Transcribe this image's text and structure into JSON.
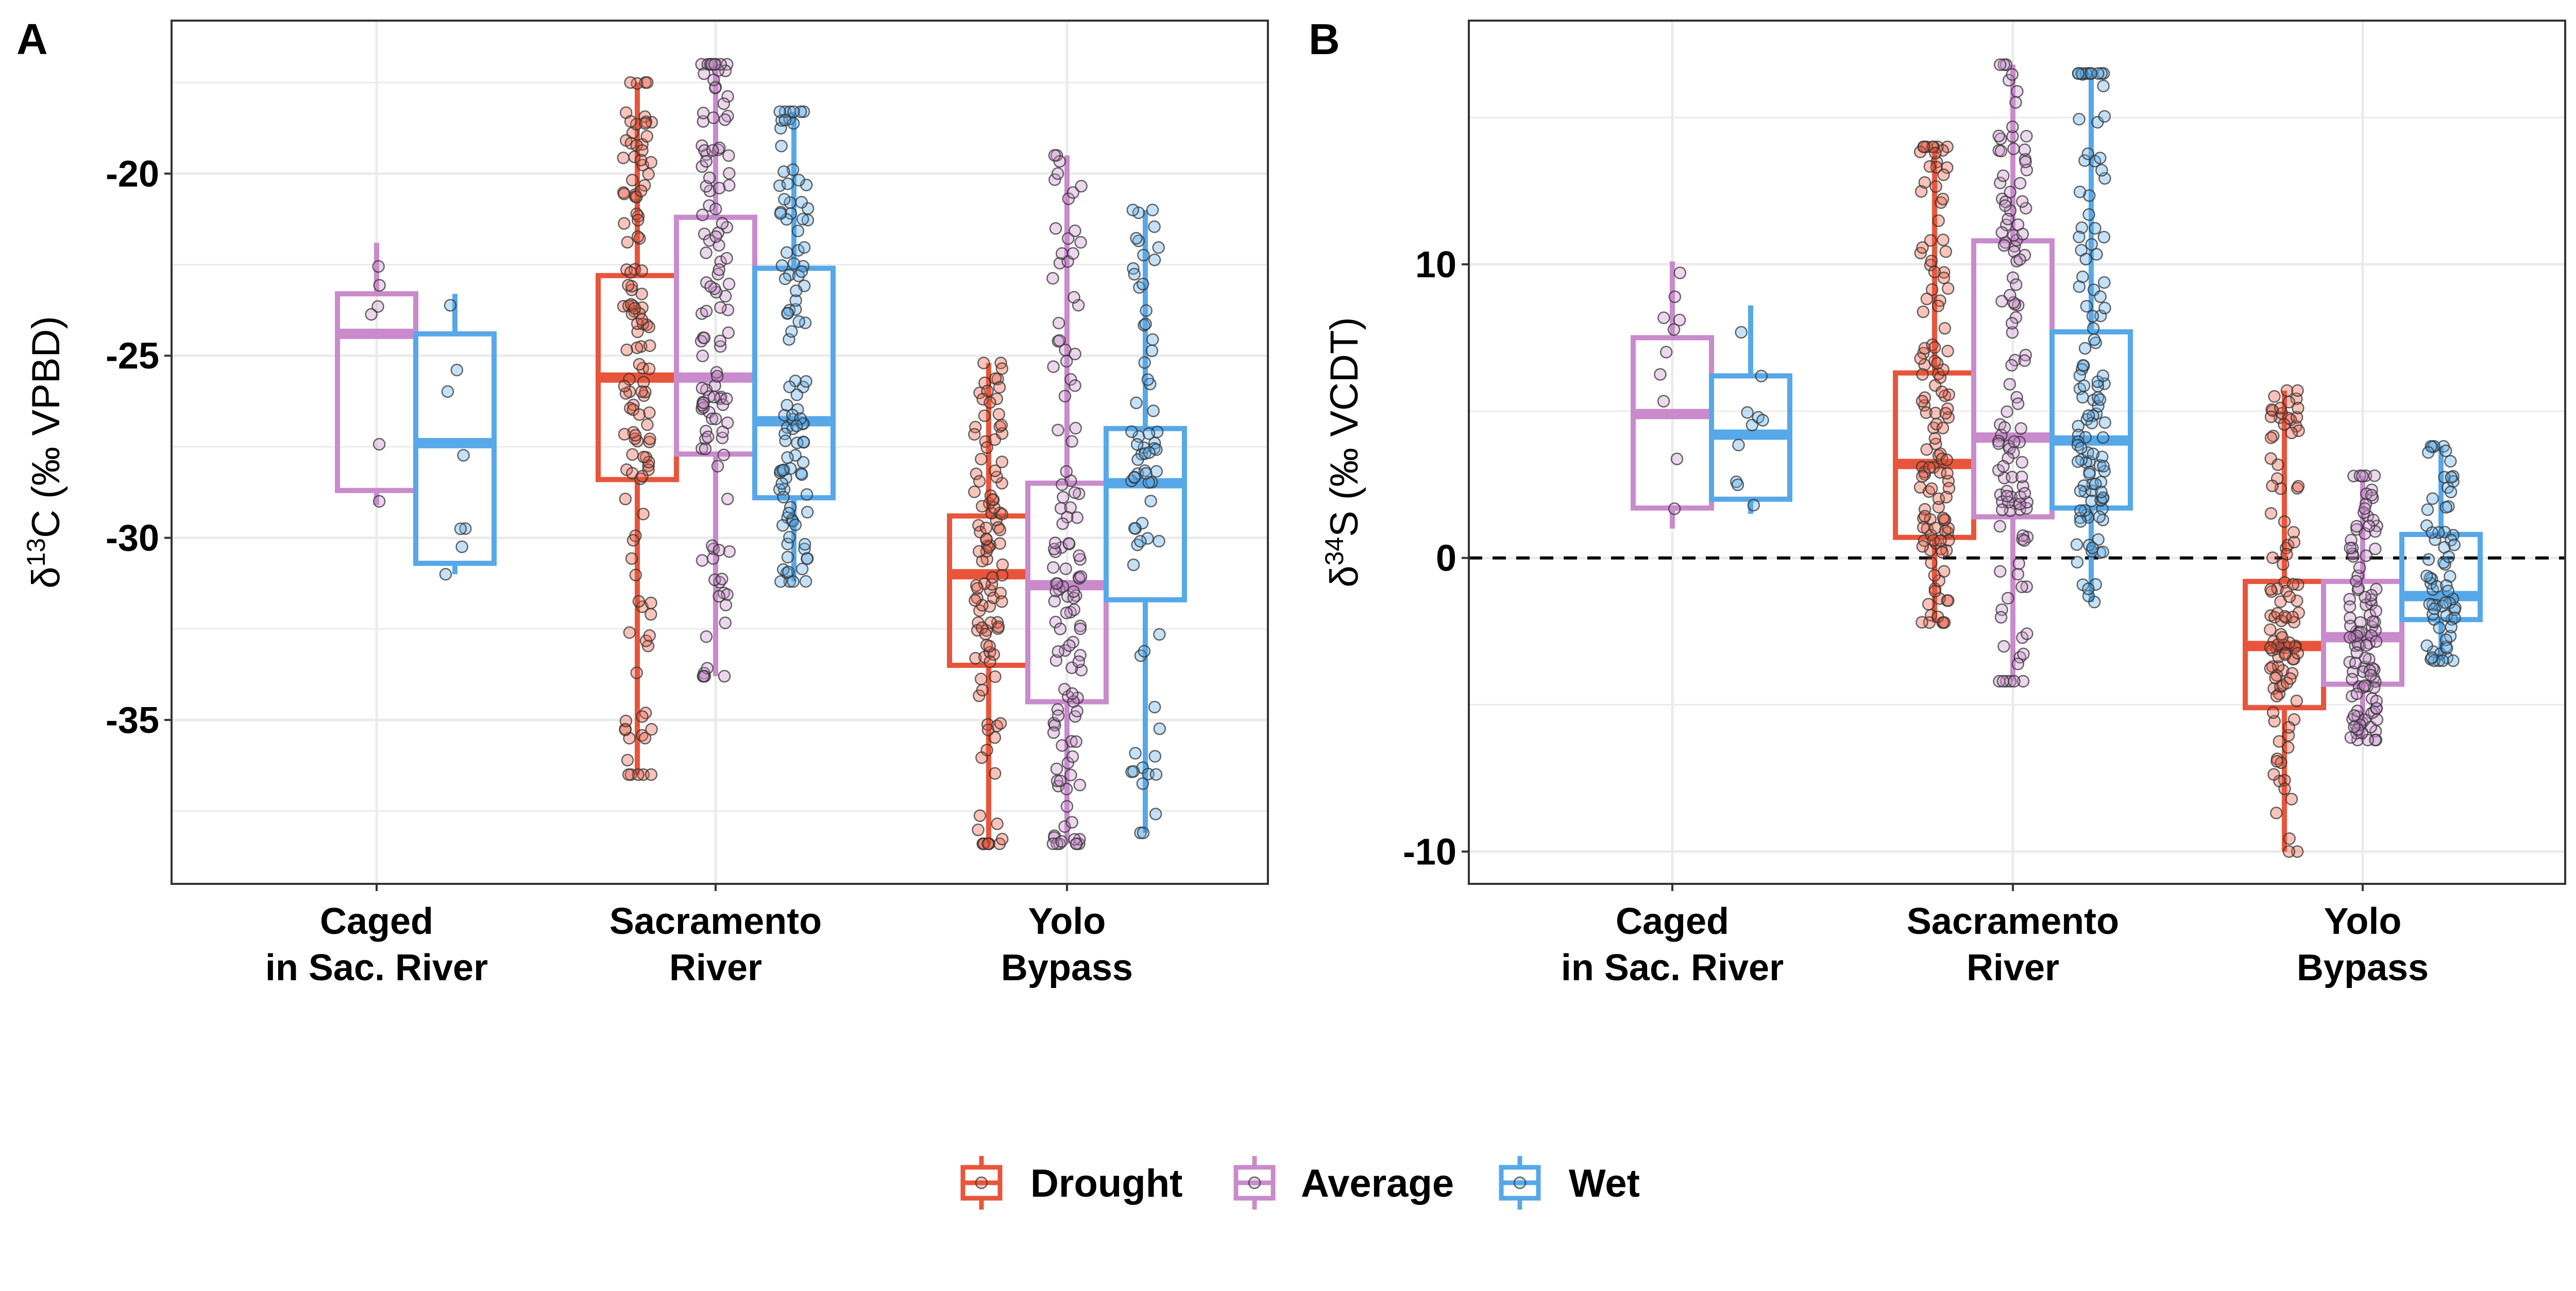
{
  "legend": {
    "items": [
      {
        "label": "Drought",
        "color": "#E8553B"
      },
      {
        "label": "Average",
        "color": "#C98BCC"
      },
      {
        "label": "Wet",
        "color": "#57A8E8"
      }
    ]
  },
  "chart_data": [
    {
      "type": "box",
      "panel": "A",
      "ylabel": {
        "prefix": "δ",
        "sup": "13",
        "suffix": "C (‰ VPBD)"
      },
      "ylim": [
        -39.5,
        -15.8
      ],
      "yticks": [
        -20,
        -25,
        -30,
        -35
      ],
      "ytick_labels": [
        "-20",
        "-25",
        "-30",
        "-35"
      ],
      "grid": true,
      "categories": [
        {
          "line1": "Caged",
          "line2": "in Sac. River"
        },
        {
          "line1": "Sacramento",
          "line2": "River"
        },
        {
          "line1": "Yolo",
          "line2": "Bypass"
        }
      ],
      "series": [
        {
          "name": "Drought",
          "boxes": [
            null,
            {
              "min": -36.5,
              "q1": -28.4,
              "median": -25.6,
              "q3": -22.8,
              "max": -17.5,
              "n": 130
            },
            {
              "min": -38.4,
              "q1": -33.5,
              "median": -31.0,
              "q3": -29.4,
              "max": -25.2,
              "n": 110
            }
          ]
        },
        {
          "name": "Average",
          "boxes": [
            {
              "min": -29.1,
              "q1": -28.7,
              "median": -24.4,
              "q3": -23.3,
              "max": -21.9,
              "n": 6
            },
            {
              "min": -33.8,
              "q1": -27.7,
              "median": -25.6,
              "q3": -21.2,
              "max": -17.0,
              "n": 120
            },
            {
              "min": -38.4,
              "q1": -34.5,
              "median": -31.3,
              "q3": -28.5,
              "max": -19.5,
              "n": 120
            }
          ]
        },
        {
          "name": "Wet",
          "boxes": [
            {
              "min": -31.0,
              "q1": -30.7,
              "median": -27.4,
              "q3": -24.4,
              "max": -23.3,
              "n": 8
            },
            {
              "min": -31.2,
              "q1": -28.9,
              "median": -26.8,
              "q3": -22.6,
              "max": -18.3,
              "n": 110
            },
            {
              "min": -38.1,
              "q1": -31.7,
              "median": -28.5,
              "q3": -27.0,
              "max": -21.0,
              "n": 70
            }
          ]
        }
      ]
    },
    {
      "type": "box",
      "panel": "B",
      "ylabel": {
        "prefix": "δ",
        "sup": "34",
        "suffix": "S (‰ VCDT)"
      },
      "ylim": [
        -11.1,
        18.3
      ],
      "yticks": [
        10,
        0,
        -10
      ],
      "ytick_labels": [
        "10",
        "0",
        "-10"
      ],
      "grid": true,
      "reference_line": 0,
      "categories": [
        {
          "line1": "Caged",
          "line2": "in Sac. River"
        },
        {
          "line1": "Sacramento",
          "line2": "River"
        },
        {
          "line1": "Yolo",
          "line2": "Bypass"
        }
      ],
      "series": [
        {
          "name": "Drought",
          "boxes": [
            null,
            {
              "min": -2.2,
              "q1": 0.7,
              "median": 3.2,
              "q3": 6.3,
              "max": 14.0,
              "n": 130
            },
            {
              "min": -10.0,
              "q1": -5.1,
              "median": -3.0,
              "q3": -0.8,
              "max": 5.7,
              "n": 110
            }
          ]
        },
        {
          "name": "Average",
          "boxes": [
            {
              "min": 1.0,
              "q1": 1.7,
              "median": 4.9,
              "q3": 7.5,
              "max": 10.1,
              "n": 10
            },
            {
              "min": -4.2,
              "q1": 1.4,
              "median": 4.1,
              "q3": 10.8,
              "max": 16.8,
              "n": 120
            },
            {
              "min": -6.2,
              "q1": -4.3,
              "median": -2.7,
              "q3": -0.8,
              "max": 2.8,
              "n": 110
            }
          ]
        },
        {
          "name": "Wet",
          "boxes": [
            {
              "min": 1.5,
              "q1": 2.0,
              "median": 4.2,
              "q3": 6.2,
              "max": 8.6,
              "n": 10
            },
            {
              "min": -1.5,
              "q1": 1.7,
              "median": 4.0,
              "q3": 7.7,
              "max": 16.5,
              "n": 120
            },
            {
              "min": -3.5,
              "q1": -2.1,
              "median": -1.3,
              "q3": 0.8,
              "max": 3.8,
              "n": 70
            }
          ]
        }
      ]
    }
  ]
}
